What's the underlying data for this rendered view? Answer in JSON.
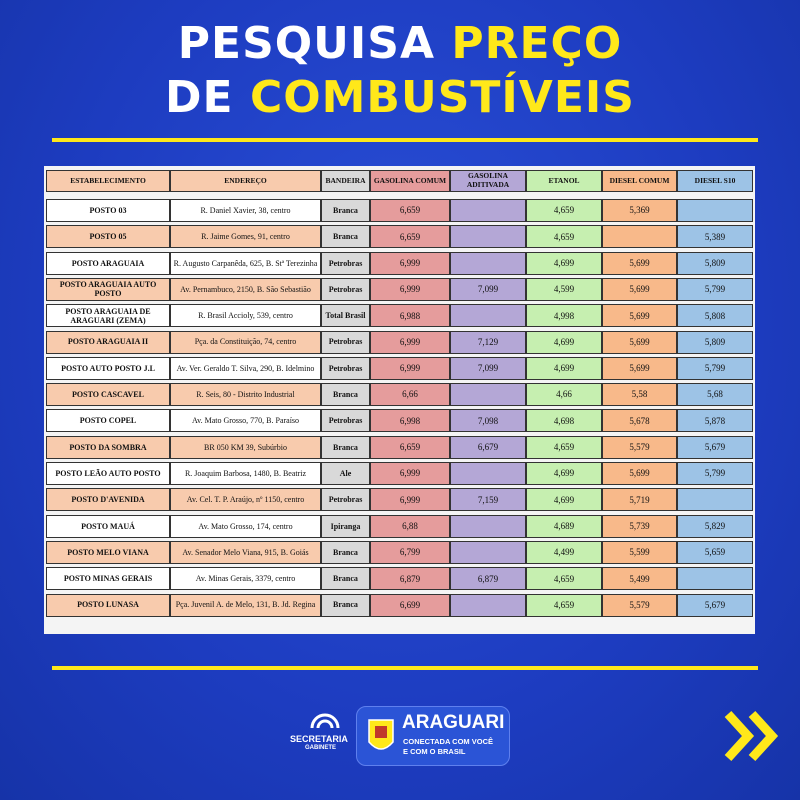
{
  "title": {
    "line1": [
      "PESQUISA",
      "PREÇO"
    ],
    "line2": [
      "DE",
      "COMBUSTÍVEIS"
    ]
  },
  "table": {
    "headers": [
      "ESTABELECIMENTO",
      "ENDEREÇO",
      "BANDEIRA",
      "GASOLINA COMUM",
      "GASOLINA ADITIVADA",
      "ETANOL",
      "DIESEL COMUM",
      "DIESEL S10"
    ],
    "rows": [
      [
        "POSTO 03",
        "R. Daniel Xavier, 38, centro",
        "Branca",
        "6,659",
        null,
        "4,659",
        "5,369",
        null
      ],
      [
        "POSTO 05",
        "R. Jaime Gomes, 91, centro",
        "Branca",
        "6,659",
        null,
        "4,659",
        null,
        "5,389"
      ],
      [
        "POSTO ARAGUAIA",
        "R. Augusto Carpanêda, 625, B. Stª Terezinha",
        "Petrobras",
        "6,999",
        null,
        "4,699",
        "5,699",
        "5,809"
      ],
      [
        "POSTO ARAGUAIA AUTO POSTO",
        "Av. Pernambuco, 2150, B. São Sebastião",
        "Petrobras",
        "6,999",
        "7,099",
        "4,599",
        "5,699",
        "5,799"
      ],
      [
        "POSTO ARAGUAIA DE ARAGUARI (ZEMA)",
        "R. Brasil Accioly, 539, centro",
        "Total Brasil",
        "6,988",
        null,
        "4,998",
        "5,699",
        "5,808"
      ],
      [
        "POSTO ARAGUAIA II",
        "Pça. da Constituição, 74, centro",
        "Petrobras",
        "6,999",
        "7,129",
        "4,699",
        "5,699",
        "5,809"
      ],
      [
        "POSTO AUTO POSTO J.L",
        "Av. Ver. Geraldo T. Silva, 290, B. Idelmino",
        "Petrobras",
        "6,999",
        "7,099",
        "4,699",
        "5,699",
        "5,799"
      ],
      [
        "POSTO CASCAVEL",
        "R. Seis, 80 - Distrito Industrial",
        "Branca",
        "6,66",
        null,
        "4,66",
        "5,58",
        "5,68"
      ],
      [
        "POSTO COPEL",
        "Av. Mato Grosso, 770, B. Paraíso",
        "Petrobras",
        "6,998",
        "7,098",
        "4,698",
        "5,678",
        "5,878"
      ],
      [
        "POSTO DA SOMBRA",
        "BR 050 KM 39,  Subúrbio",
        "Branca",
        "6,659",
        "6,679",
        "4,659",
        "5,579",
        "5,679"
      ],
      [
        "POSTO LEÃO AUTO POSTO",
        "R. Joaquim Barbosa, 1480, B. Beatriz",
        "Ale",
        "6,999",
        null,
        "4,699",
        "5,699",
        "5,799"
      ],
      [
        "POSTO D'AVENIDA",
        "Av. Cel. T. P. Araújo, nº 1150, centro",
        "Petrobras",
        "6,999",
        "7,159",
        "4,699",
        "5,719",
        null
      ],
      [
        "POSTO MAUÁ",
        "Av. Mato Grosso, 174, centro",
        "Ipiranga",
        "6,88",
        null,
        "4,689",
        "5,739",
        "5,829"
      ],
      [
        "POSTO MELO VIANA",
        "Av. Senador Melo Viana, 915, B. Goiás",
        "Branca",
        "6,799",
        null,
        "4,499",
        "5,599",
        "5,659"
      ],
      [
        "POSTO MINAS GERAIS",
        "Av. Minas Gerais, 3379, centro",
        "Branca",
        "6,879",
        "6,879",
        "4,659",
        "5,499",
        null
      ],
      [
        "POSTO LUNASA",
        "Pça. Juvenil A. de Melo, 131, B. Jd. Regina",
        "Branca",
        "6,699",
        null,
        "4,659",
        "5,579",
        "5,679"
      ]
    ]
  },
  "footer": {
    "secretaria": "SECRETARIA",
    "gabinete": "GABINETE",
    "city": "ARAGUARI",
    "slogan1": "CONECTADA COM VOCÊ",
    "slogan2": "E COM O BRASIL"
  }
}
